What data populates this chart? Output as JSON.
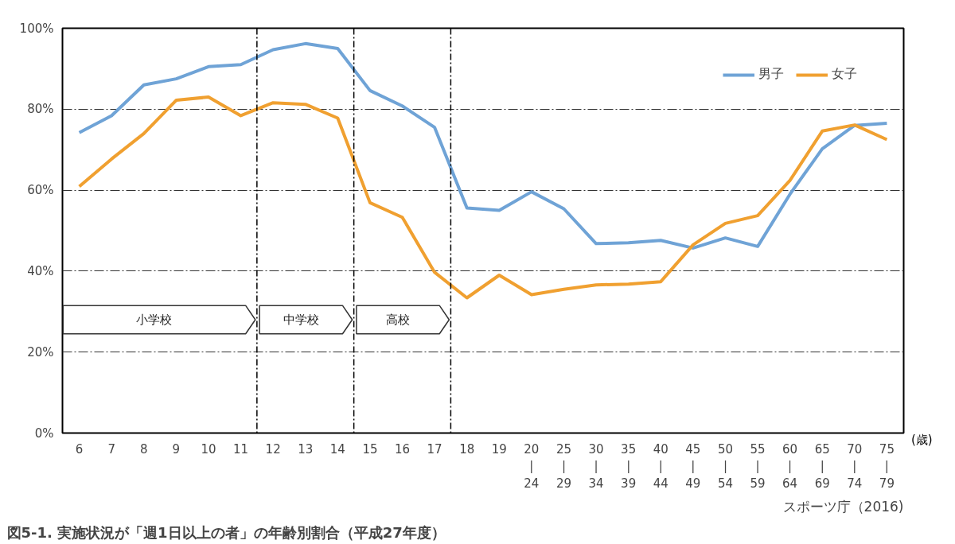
{
  "chart_data": {
    "type": "line",
    "title": "図5-1. 実施状況が「週1日以上の者」の年齢別割合（平成27年度）",
    "xlabel": "(歳)",
    "annotations": [
      "スポーツ庁（2016)"
    ],
    "categories": [
      "6",
      "7",
      "8",
      "9",
      "10",
      "11",
      "12",
      "13",
      "14",
      "15",
      "16",
      "17",
      "18",
      "19",
      "20\n|\n24",
      "25\n|\n29",
      "30\n|\n34",
      "35\n|\n39",
      "40\n|\n44",
      "45\n|\n49",
      "50\n|\n54",
      "55\n|\n59",
      "60\n|\n64",
      "65\n|\n69",
      "70\n|\n74",
      "75\n|\n79"
    ],
    "series": [
      {
        "name": "男子",
        "color": "#6fa3d6",
        "values": [
          74.2,
          78.4,
          86,
          87.5,
          90.5,
          91,
          94.7,
          96.2,
          95,
          84.6,
          80.8,
          75.5,
          55.6,
          55,
          59.6,
          55.4,
          46.8,
          47,
          47.6,
          45.7,
          48.2,
          46.1,
          59,
          70.2,
          76,
          76.5
        ]
      },
      {
        "name": "女子",
        "color": "#f0a030",
        "values": [
          60.9,
          67.7,
          74,
          82.2,
          83,
          78.4,
          81.6,
          81.2,
          77.8,
          56.9,
          53.3,
          39.7,
          33.4,
          39,
          34.2,
          35.5,
          36.6,
          36.8,
          37.4,
          46.5,
          51.8,
          53.7,
          62.4,
          74.6,
          76.1,
          72.5
        ]
      }
    ],
    "bands": [
      {
        "axis": "x",
        "from": "6",
        "to": "11",
        "label": "小学校"
      },
      {
        "axis": "x",
        "from": "12",
        "to": "14",
        "label": "中学校"
      },
      {
        "axis": "x",
        "from": "15",
        "to": "17",
        "label": "高校"
      }
    ],
    "ylim": [
      0,
      100
    ],
    "yticks": [
      {
        "value": 0,
        "label": "0%"
      },
      {
        "value": 20,
        "label": "20%"
      },
      {
        "value": 40,
        "label": "40%"
      },
      {
        "value": 60,
        "label": "60%"
      },
      {
        "value": 80,
        "label": "80%"
      },
      {
        "value": 100,
        "label": "100%"
      }
    ],
    "grid": "y",
    "legend": "top right",
    "line_style": "solid",
    "marker": "none"
  }
}
